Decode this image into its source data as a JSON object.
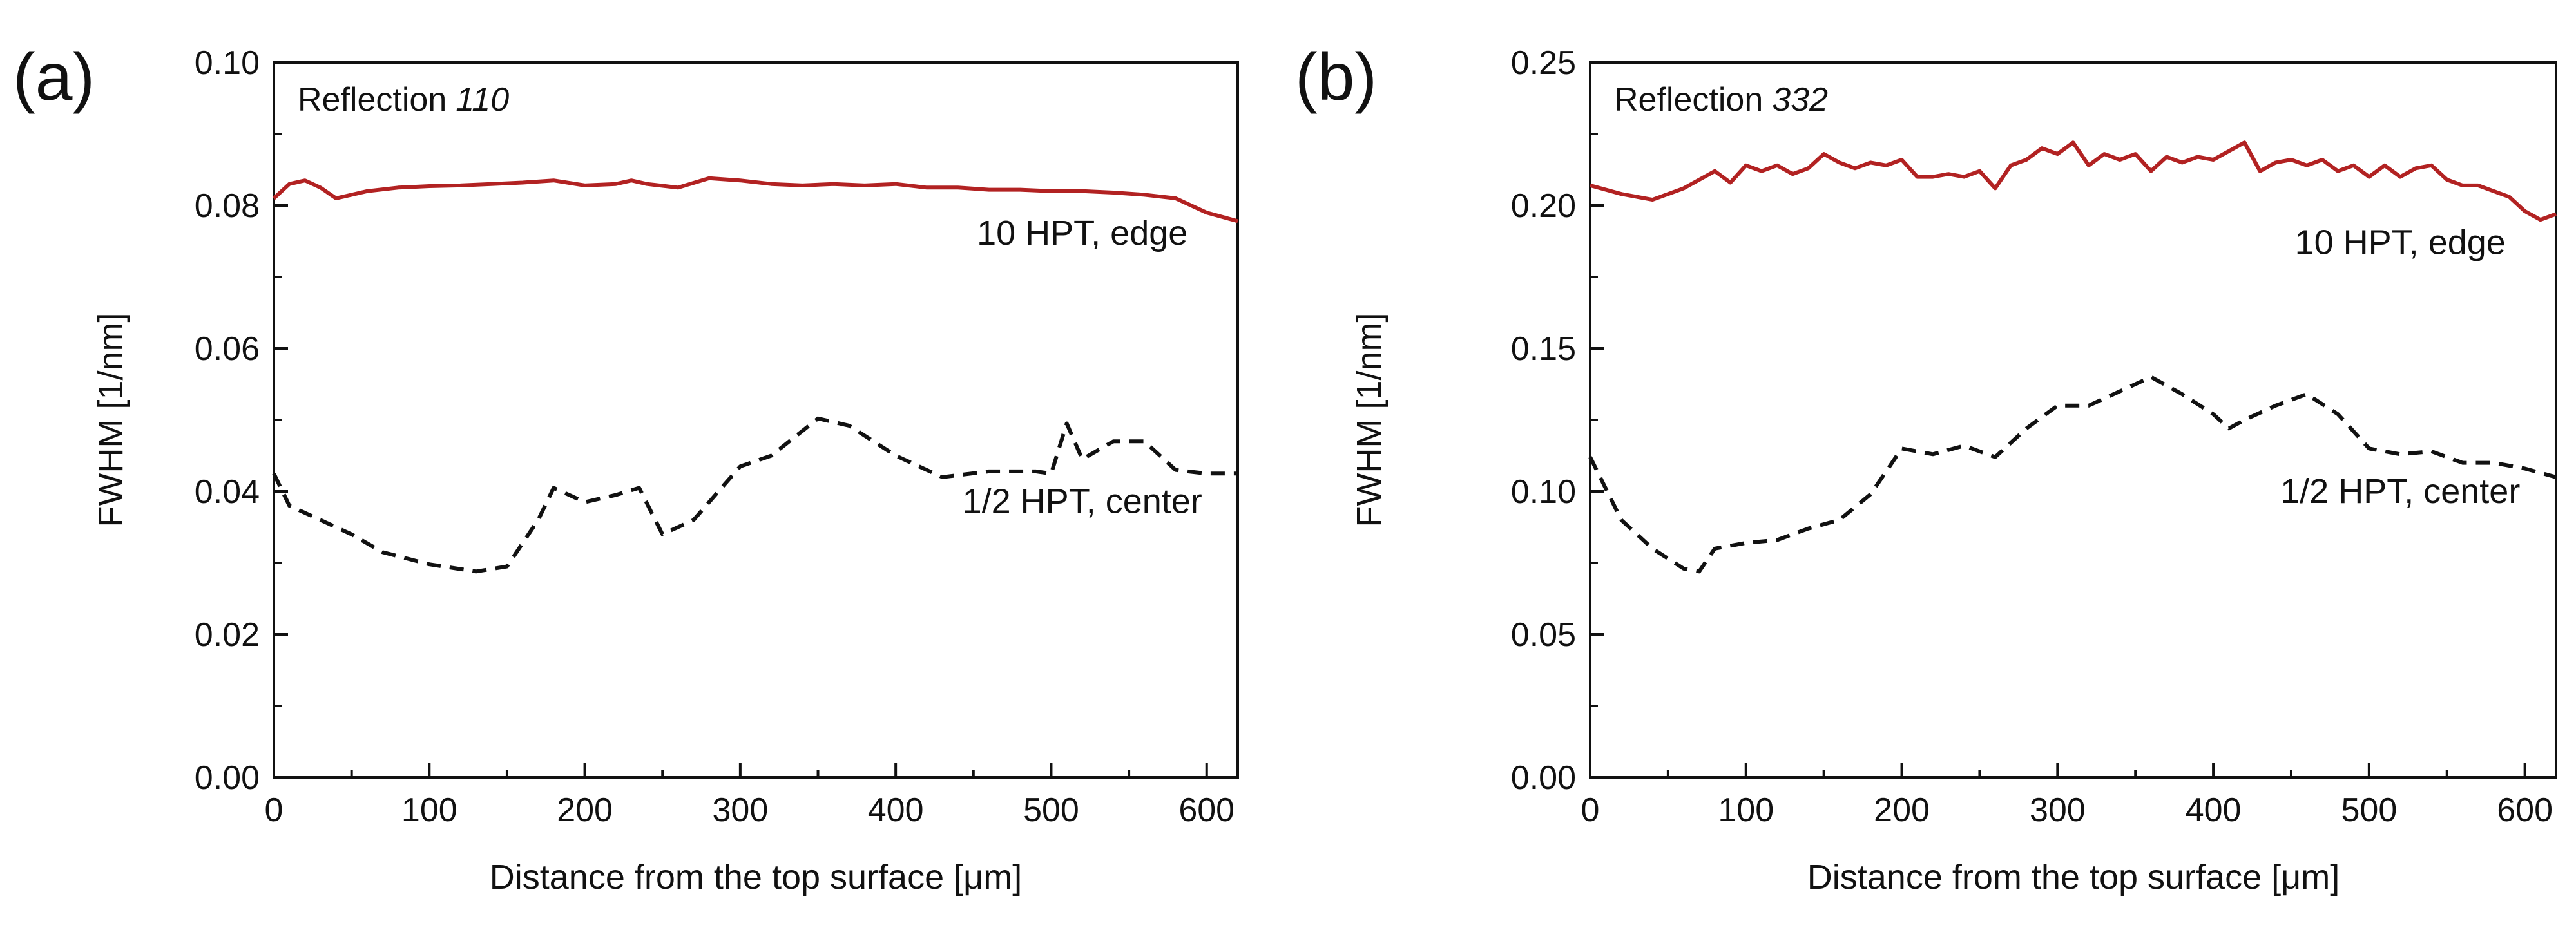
{
  "chart_data": [
    {
      "type": "line",
      "panel_label": "(a)",
      "title": "",
      "inset_label": "Reflection",
      "inset_reflection": "110",
      "xlabel": "Distance from the top surface [μm]",
      "ylabel": "FWHM [1/nm]",
      "xlim": [
        0,
        620
      ],
      "ylim": [
        0,
        0.1
      ],
      "x_ticks": [
        0,
        100,
        200,
        300,
        400,
        500,
        600
      ],
      "x_tick_labels": [
        "0",
        "100",
        "200",
        "300",
        "400",
        "500",
        "600"
      ],
      "y_ticks": [
        0,
        0.02,
        0.04,
        0.06,
        0.08,
        0.1
      ],
      "y_tick_labels": [
        "0.00",
        "0.02",
        "0.04",
        "0.06",
        "0.08",
        "0.10"
      ],
      "grid": false,
      "series": [
        {
          "name": "10 HPT, edge",
          "label_pos": [
            520,
            0.0745
          ],
          "color": "#b22222",
          "style": "solid",
          "x": [
            0,
            10,
            20,
            30,
            40,
            50,
            60,
            80,
            100,
            120,
            140,
            160,
            180,
            200,
            220,
            230,
            240,
            260,
            280,
            300,
            320,
            340,
            360,
            380,
            400,
            420,
            440,
            460,
            480,
            500,
            520,
            540,
            560,
            580,
            600,
            620
          ],
          "y": [
            0.081,
            0.083,
            0.0835,
            0.0825,
            0.081,
            0.0815,
            0.082,
            0.0825,
            0.0827,
            0.0828,
            0.083,
            0.0832,
            0.0835,
            0.0828,
            0.083,
            0.0835,
            0.083,
            0.0825,
            0.0838,
            0.0835,
            0.083,
            0.0828,
            0.083,
            0.0828,
            0.083,
            0.0825,
            0.0825,
            0.0822,
            0.0822,
            0.082,
            0.082,
            0.0818,
            0.0815,
            0.081,
            0.079,
            0.0778
          ]
        },
        {
          "name": "1/2 HPT, center",
          "label_pos": [
            520,
            0.037
          ],
          "color": "#111111",
          "style": "dashed",
          "x": [
            0,
            10,
            30,
            50,
            70,
            100,
            130,
            150,
            170,
            180,
            200,
            220,
            235,
            250,
            270,
            290,
            300,
            320,
            350,
            370,
            400,
            430,
            460,
            490,
            500,
            510,
            520,
            540,
            560,
            580,
            600,
            620
          ],
          "y": [
            0.0425,
            0.038,
            0.036,
            0.034,
            0.0315,
            0.0298,
            0.0288,
            0.0295,
            0.036,
            0.0405,
            0.0385,
            0.0395,
            0.0405,
            0.034,
            0.036,
            0.041,
            0.0435,
            0.045,
            0.0502,
            0.0492,
            0.045,
            0.042,
            0.0428,
            0.0428,
            0.0425,
            0.0495,
            0.0445,
            0.047,
            0.047,
            0.043,
            0.0425,
            0.0425
          ]
        }
      ]
    },
    {
      "type": "line",
      "panel_label": "(b)",
      "title": "",
      "inset_label": "Reflection",
      "inset_reflection": "332",
      "xlabel": "Distance from the top surface [μm]",
      "ylabel": "FWHM [1/nm]",
      "xlim": [
        0,
        620
      ],
      "ylim": [
        0,
        0.25
      ],
      "x_ticks": [
        0,
        100,
        200,
        300,
        400,
        500,
        600
      ],
      "x_tick_labels": [
        "0",
        "100",
        "200",
        "300",
        "400",
        "500",
        "600"
      ],
      "y_ticks": [
        0,
        0.05,
        0.1,
        0.15,
        0.2,
        0.25
      ],
      "y_tick_labels": [
        "0.00",
        "0.05",
        "0.10",
        "0.15",
        "0.20",
        "0.25"
      ],
      "grid": false,
      "series": [
        {
          "name": "10 HPT, edge",
          "label_pos": [
            520,
            0.183
          ],
          "color": "#b22222",
          "style": "solid",
          "x": [
            0,
            20,
            40,
            60,
            80,
            90,
            100,
            110,
            120,
            130,
            140,
            150,
            160,
            170,
            180,
            190,
            200,
            210,
            220,
            230,
            240,
            250,
            260,
            270,
            280,
            290,
            300,
            310,
            320,
            330,
            340,
            350,
            360,
            370,
            380,
            390,
            400,
            410,
            420,
            430,
            440,
            450,
            460,
            470,
            480,
            490,
            500,
            510,
            520,
            530,
            540,
            550,
            560,
            570,
            580,
            590,
            600,
            610,
            620
          ],
          "y": [
            0.207,
            0.204,
            0.202,
            0.206,
            0.212,
            0.208,
            0.214,
            0.212,
            0.214,
            0.211,
            0.213,
            0.218,
            0.215,
            0.213,
            0.215,
            0.214,
            0.216,
            0.21,
            0.21,
            0.211,
            0.21,
            0.212,
            0.206,
            0.214,
            0.216,
            0.22,
            0.218,
            0.222,
            0.214,
            0.218,
            0.216,
            0.218,
            0.212,
            0.217,
            0.215,
            0.217,
            0.216,
            0.219,
            0.222,
            0.212,
            0.215,
            0.216,
            0.214,
            0.216,
            0.212,
            0.214,
            0.21,
            0.214,
            0.21,
            0.213,
            0.214,
            0.209,
            0.207,
            0.207,
            0.205,
            0.203,
            0.198,
            0.195,
            0.197
          ]
        },
        {
          "name": "1/2 HPT, center",
          "label_pos": [
            520,
            0.096
          ],
          "color": "#111111",
          "style": "dashed",
          "x": [
            0,
            20,
            40,
            60,
            70,
            80,
            100,
            120,
            140,
            160,
            180,
            190,
            200,
            220,
            240,
            260,
            280,
            300,
            320,
            340,
            360,
            380,
            400,
            410,
            420,
            440,
            460,
            480,
            500,
            520,
            540,
            560,
            580,
            600,
            620
          ],
          "y": [
            0.112,
            0.09,
            0.08,
            0.073,
            0.072,
            0.08,
            0.082,
            0.083,
            0.087,
            0.09,
            0.099,
            0.107,
            0.115,
            0.113,
            0.116,
            0.112,
            0.122,
            0.13,
            0.13,
            0.135,
            0.14,
            0.134,
            0.127,
            0.122,
            0.125,
            0.13,
            0.134,
            0.127,
            0.115,
            0.113,
            0.114,
            0.11,
            0.11,
            0.108,
            0.105
          ]
        }
      ]
    }
  ]
}
